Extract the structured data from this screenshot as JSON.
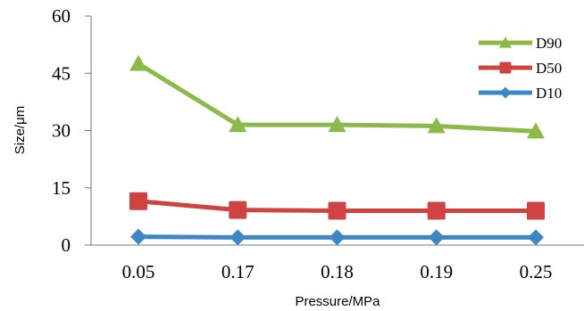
{
  "chart_data": {
    "type": "line",
    "title": "",
    "xlabel": "Pressure/MPa",
    "ylabel": "Size/μm",
    "categories": [
      "0.05",
      "0.17",
      "0.18",
      "0.19",
      "0.25"
    ],
    "ylim": [
      0,
      60
    ],
    "yticks": [
      0,
      15,
      30,
      45,
      60
    ],
    "grid": false,
    "legend_position": "top-right",
    "series": [
      {
        "name": "D90",
        "marker": "triangle",
        "color": "#8DB84A",
        "values": [
          47.5,
          31.5,
          31.5,
          31.2,
          29.8
        ]
      },
      {
        "name": "D50",
        "marker": "square",
        "color": "#D04343",
        "values": [
          11.5,
          9.2,
          9.0,
          9.0,
          9.0
        ]
      },
      {
        "name": "D10",
        "marker": "diamond",
        "color": "#3E85C6",
        "values": [
          2.2,
          2.0,
          2.0,
          2.0,
          2.0
        ]
      }
    ]
  }
}
